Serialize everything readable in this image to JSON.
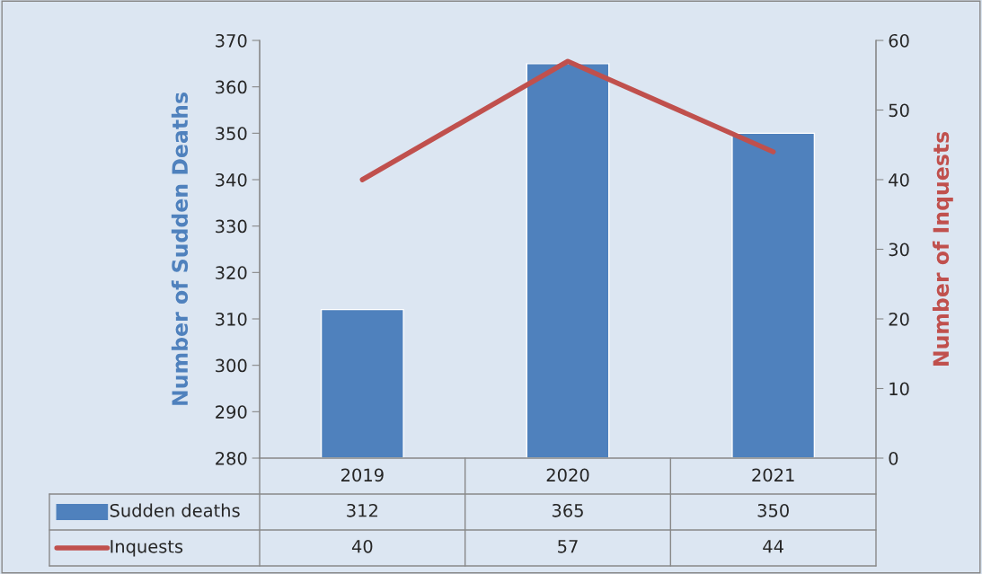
{
  "chart_data": {
    "type": "bar",
    "categories": [
      "2019",
      "2020",
      "2021"
    ],
    "series": [
      {
        "name": "Sudden deaths",
        "color": "#4f81bd",
        "values": [
          312,
          365,
          350
        ]
      },
      {
        "name": "Inquests",
        "type": "line",
        "axis": "y2",
        "color": "#c0504d",
        "values": [
          40,
          57,
          44
        ],
        "marker": "none"
      }
    ],
    "ylabel": "Number of Sudden Deaths",
    "y2label": "Number of Inquests",
    "ylim": [
      280,
      370
    ],
    "yticks": [
      280,
      290,
      300,
      310,
      320,
      330,
      340,
      350,
      360,
      370
    ],
    "y2lim": [
      0,
      60
    ],
    "y2ticks": [
      0,
      10,
      20,
      30,
      40,
      50,
      60
    ],
    "data_labels": true,
    "legend": "bottom",
    "grid": false
  }
}
